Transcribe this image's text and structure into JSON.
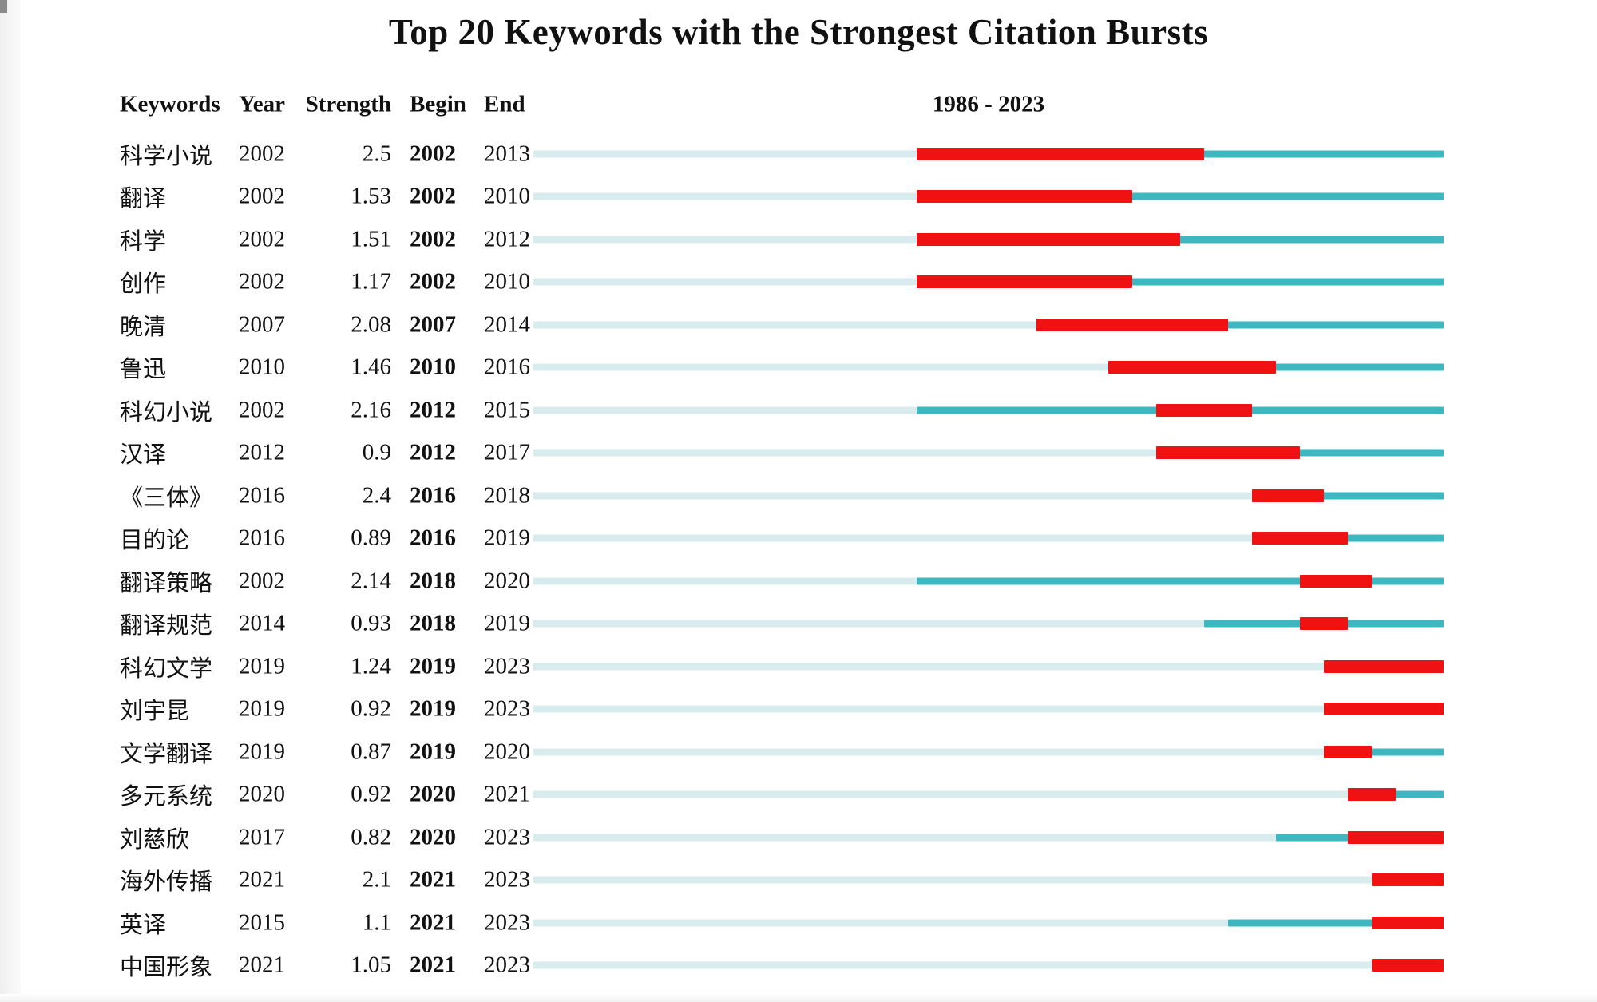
{
  "title": "Top 20 Keywords with the Strongest Citation Bursts",
  "colors": {
    "burst_red": "#f01212",
    "active_teal": "#3eb7c0",
    "inactive_light": "#d8ecee"
  },
  "chart_data": {
    "type": "table",
    "title": "Top 20 Keywords with the Strongest Citation Bursts",
    "columns": [
      "Keywords",
      "Year",
      "Strength",
      "Begin",
      "End"
    ],
    "timeline": {
      "label": "1986 - 2023",
      "start": 1986,
      "end": 2023
    },
    "legend_note": "light segment = before first appearance, teal segment = keyword active, red segment = citation burst period",
    "rows": [
      {
        "keyword": "科学小说",
        "year": 2002,
        "strength": "2.5",
        "begin": 2002,
        "end": 2013
      },
      {
        "keyword": "翻译",
        "year": 2002,
        "strength": "1.53",
        "begin": 2002,
        "end": 2010
      },
      {
        "keyword": "科学",
        "year": 2002,
        "strength": "1.51",
        "begin": 2002,
        "end": 2012
      },
      {
        "keyword": "创作",
        "year": 2002,
        "strength": "1.17",
        "begin": 2002,
        "end": 2010
      },
      {
        "keyword": "晚清",
        "year": 2007,
        "strength": "2.08",
        "begin": 2007,
        "end": 2014
      },
      {
        "keyword": "鲁迅",
        "year": 2010,
        "strength": "1.46",
        "begin": 2010,
        "end": 2016
      },
      {
        "keyword": "科幻小说",
        "year": 2002,
        "strength": "2.16",
        "begin": 2012,
        "end": 2015
      },
      {
        "keyword": "汉译",
        "year": 2012,
        "strength": "0.9",
        "begin": 2012,
        "end": 2017
      },
      {
        "keyword": "《三体》",
        "year": 2016,
        "strength": "2.4",
        "begin": 2016,
        "end": 2018
      },
      {
        "keyword": "目的论",
        "year": 2016,
        "strength": "0.89",
        "begin": 2016,
        "end": 2019
      },
      {
        "keyword": "翻译策略",
        "year": 2002,
        "strength": "2.14",
        "begin": 2018,
        "end": 2020
      },
      {
        "keyword": "翻译规范",
        "year": 2014,
        "strength": "0.93",
        "begin": 2018,
        "end": 2019
      },
      {
        "keyword": "科幻文学",
        "year": 2019,
        "strength": "1.24",
        "begin": 2019,
        "end": 2023
      },
      {
        "keyword": "刘宇昆",
        "year": 2019,
        "strength": "0.92",
        "begin": 2019,
        "end": 2023
      },
      {
        "keyword": "文学翻译",
        "year": 2019,
        "strength": "0.87",
        "begin": 2019,
        "end": 2020
      },
      {
        "keyword": "多元系统",
        "year": 2020,
        "strength": "0.92",
        "begin": 2020,
        "end": 2021
      },
      {
        "keyword": "刘慈欣",
        "year": 2017,
        "strength": "0.82",
        "begin": 2020,
        "end": 2023
      },
      {
        "keyword": "海外传播",
        "year": 2021,
        "strength": "2.1",
        "begin": 2021,
        "end": 2023
      },
      {
        "keyword": "英译",
        "year": 2015,
        "strength": "1.1",
        "begin": 2021,
        "end": 2023
      },
      {
        "keyword": "中国形象",
        "year": 2021,
        "strength": "1.05",
        "begin": 2021,
        "end": 2023
      }
    ]
  }
}
